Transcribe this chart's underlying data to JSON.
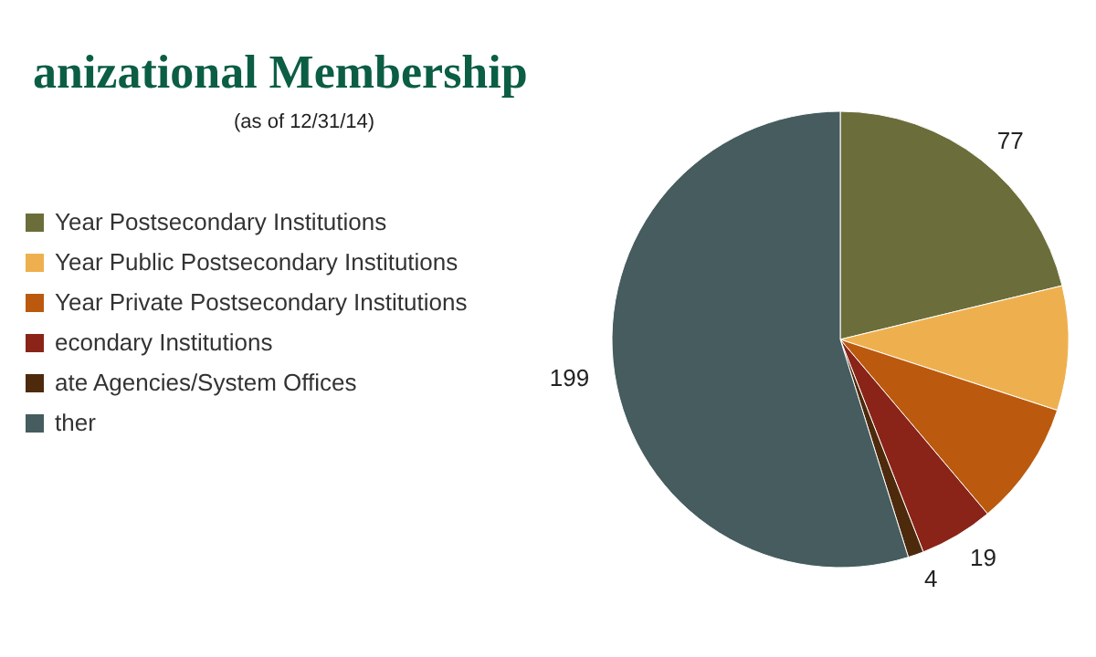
{
  "chart_data": {
    "type": "pie",
    "title": "anizational Membership",
    "subtitle": "(as of 12/31/14)",
    "categories": [
      "Year Postsecondary Institutions",
      "Year Public Postsecondary Institutions",
      "Year Private Postsecondary Institutions",
      "econdary Institutions",
      "ate Agencies/System Offices",
      "ther"
    ],
    "values": [
      77,
      32,
      32,
      19,
      4,
      199
    ],
    "value_labels": [
      "77",
      null,
      null,
      "19",
      "4",
      "199"
    ],
    "colors": [
      "#6b6e3a",
      "#eeb04f",
      "#bb5a0e",
      "#8a2419",
      "#4e2a0c",
      "#465c5f"
    ],
    "legend": "left"
  }
}
